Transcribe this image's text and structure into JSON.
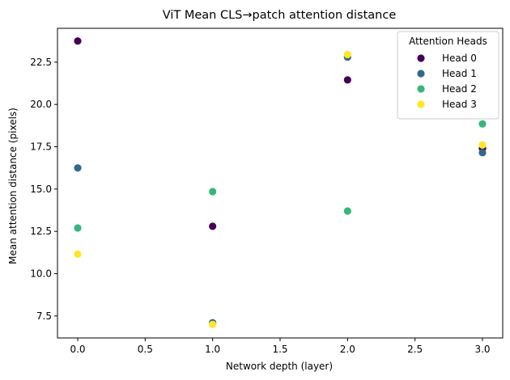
{
  "chart_data": {
    "type": "scatter",
    "title": "ViT Mean CLS→patch attention distance",
    "xlabel": "Network depth (layer)",
    "ylabel": "Mean attention distance (pixels)",
    "xlim": [
      -0.15,
      3.15
    ],
    "ylim": [
      6.2,
      24.5
    ],
    "xticks": [
      0.0,
      0.5,
      1.0,
      1.5,
      2.0,
      2.5,
      3.0
    ],
    "xtick_labels": [
      "0.0",
      "0.5",
      "1.0",
      "1.5",
      "2.0",
      "2.5",
      "3.0"
    ],
    "yticks": [
      7.5,
      10.0,
      12.5,
      15.0,
      17.5,
      20.0,
      22.5
    ],
    "ytick_labels": [
      "7.5",
      "10.0",
      "12.5",
      "15.0",
      "17.5",
      "20.0",
      "22.5"
    ],
    "grid": false,
    "legend": {
      "title": "Attention Heads",
      "placement": "top-right"
    },
    "series": [
      {
        "name": "Head 0",
        "color": "#440154",
        "x": [
          0,
          1,
          2,
          3
        ],
        "y": [
          23.75,
          12.8,
          21.45,
          17.4
        ]
      },
      {
        "name": "Head 1",
        "color": "#31688e",
        "x": [
          0,
          1,
          2,
          3
        ],
        "y": [
          16.25,
          7.1,
          22.8,
          17.15
        ]
      },
      {
        "name": "Head 2",
        "color": "#35b779",
        "x": [
          0,
          1,
          2,
          3
        ],
        "y": [
          12.7,
          14.85,
          13.7,
          18.85
        ]
      },
      {
        "name": "Head 3",
        "color": "#fde725",
        "x": [
          0,
          1,
          2,
          3
        ],
        "y": [
          11.15,
          7.0,
          22.95,
          17.6
        ]
      }
    ]
  }
}
